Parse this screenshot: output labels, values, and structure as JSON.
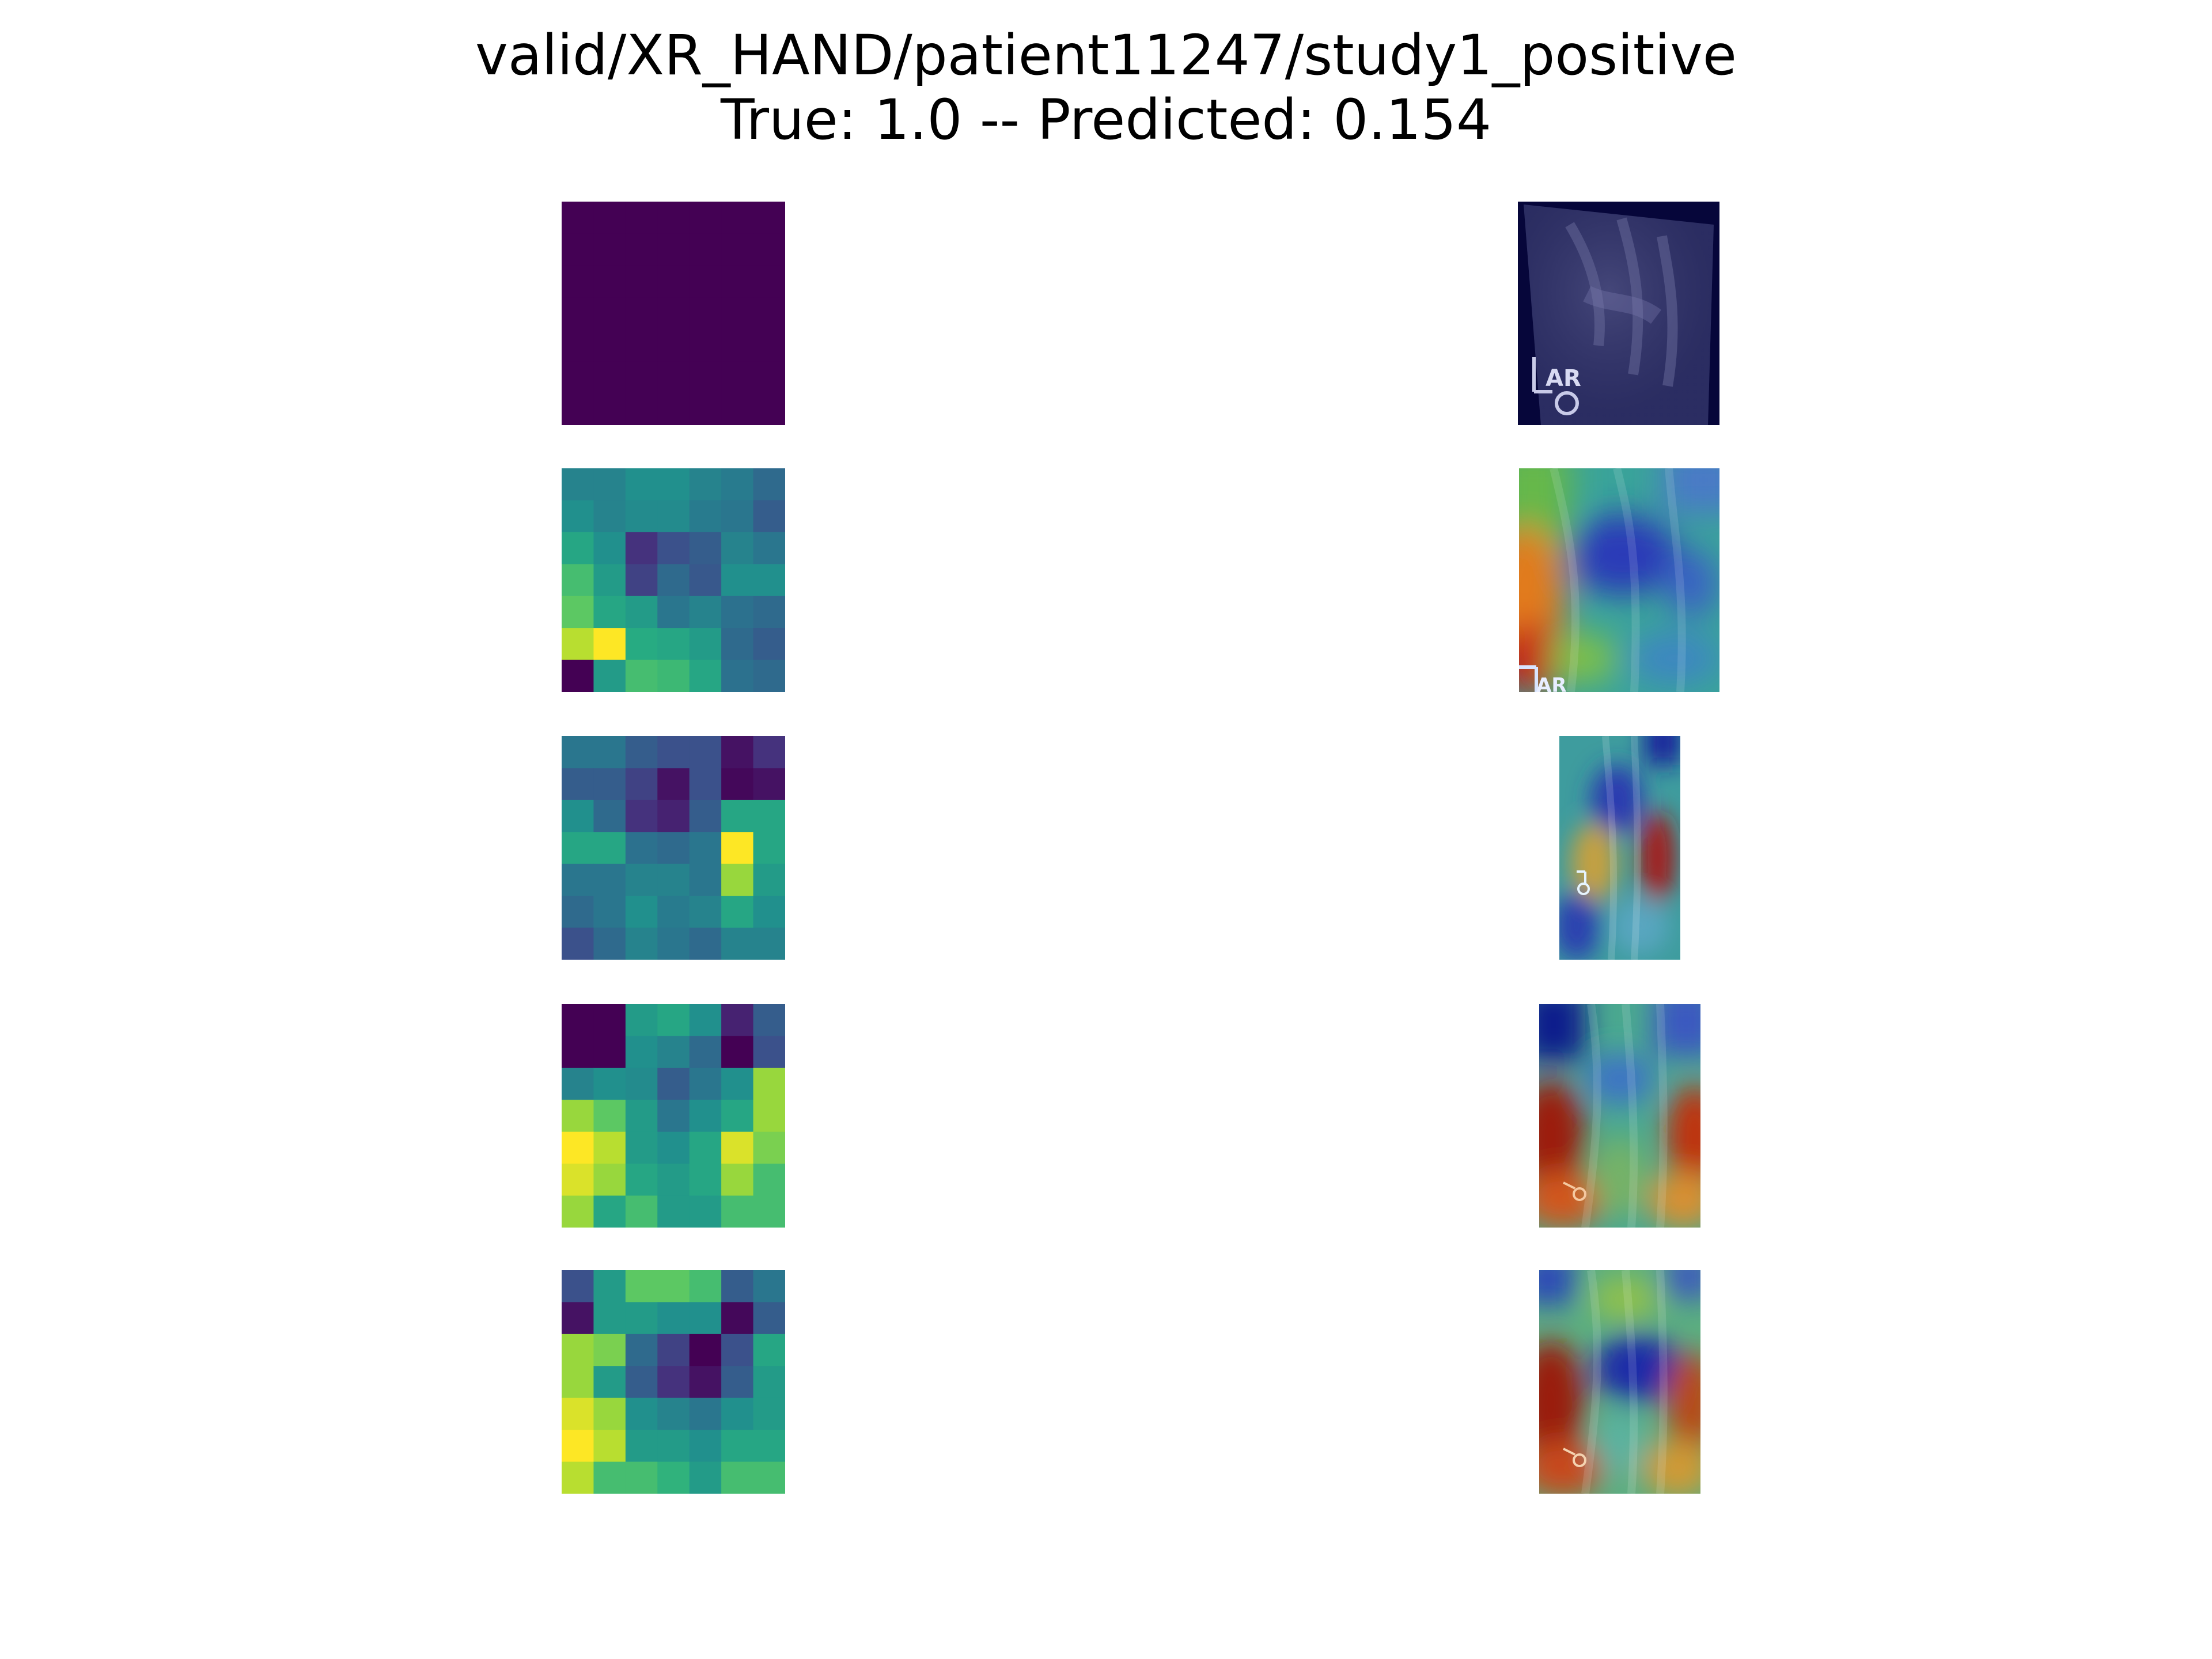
{
  "figure": {
    "title_line1": "valid/XR_HAND/patient11247/study1_positive",
    "title_line2": "True: 1.0 -- Predicted: 0.154"
  },
  "colormaps": {
    "heatmap": "viridis",
    "overlay": "jet"
  },
  "heatmaps": [
    {
      "name": "heatmap-1",
      "grid": [
        [
          0,
          0,
          0,
          0,
          0,
          0,
          0
        ],
        [
          0,
          0,
          0,
          0,
          0,
          0,
          0
        ],
        [
          0,
          0,
          0,
          0,
          0,
          0,
          0
        ],
        [
          0,
          0,
          0,
          0,
          0,
          0,
          0
        ],
        [
          0,
          0,
          0,
          0,
          0,
          0,
          0
        ],
        [
          0,
          0,
          0,
          0,
          0,
          0,
          0
        ],
        [
          0,
          0,
          0,
          0,
          0,
          0,
          0
        ]
      ]
    },
    {
      "name": "heatmap-2",
      "grid": [
        [
          0.45,
          0.45,
          0.5,
          0.5,
          0.45,
          0.42,
          0.35
        ],
        [
          0.5,
          0.45,
          0.48,
          0.48,
          0.42,
          0.4,
          0.3
        ],
        [
          0.6,
          0.5,
          0.15,
          0.25,
          0.3,
          0.45,
          0.4
        ],
        [
          0.7,
          0.55,
          0.2,
          0.35,
          0.28,
          0.5,
          0.5
        ],
        [
          0.75,
          0.6,
          0.55,
          0.4,
          0.45,
          0.38,
          0.35
        ],
        [
          0.9,
          1.0,
          0.62,
          0.6,
          0.55,
          0.35,
          0.3
        ],
        [
          0.0,
          0.55,
          0.7,
          0.68,
          0.6,
          0.38,
          0.35
        ]
      ]
    },
    {
      "name": "heatmap-3",
      "grid": [
        [
          0.4,
          0.4,
          0.3,
          0.25,
          0.25,
          0.05,
          0.15
        ],
        [
          0.3,
          0.3,
          0.2,
          0.05,
          0.25,
          0.02,
          0.05
        ],
        [
          0.5,
          0.35,
          0.15,
          0.1,
          0.3,
          0.6,
          0.6
        ],
        [
          0.6,
          0.6,
          0.38,
          0.35,
          0.4,
          1.0,
          0.6
        ],
        [
          0.4,
          0.4,
          0.45,
          0.45,
          0.4,
          0.85,
          0.55
        ],
        [
          0.35,
          0.4,
          0.5,
          0.42,
          0.45,
          0.6,
          0.5
        ],
        [
          0.25,
          0.35,
          0.45,
          0.4,
          0.35,
          0.45,
          0.45
        ]
      ]
    },
    {
      "name": "heatmap-4",
      "grid": [
        [
          0.0,
          0.0,
          0.55,
          0.6,
          0.5,
          0.1,
          0.3
        ],
        [
          0.0,
          0.0,
          0.5,
          0.45,
          0.35,
          0.0,
          0.25
        ],
        [
          0.45,
          0.5,
          0.48,
          0.3,
          0.4,
          0.5,
          0.85
        ],
        [
          0.85,
          0.75,
          0.55,
          0.4,
          0.5,
          0.6,
          0.85
        ],
        [
          1.0,
          0.9,
          0.55,
          0.5,
          0.6,
          0.95,
          0.8
        ],
        [
          0.95,
          0.85,
          0.6,
          0.55,
          0.6,
          0.85,
          0.7
        ],
        [
          0.85,
          0.6,
          0.7,
          0.55,
          0.55,
          0.7,
          0.7
        ]
      ]
    },
    {
      "name": "heatmap-5",
      "grid": [
        [
          0.25,
          0.55,
          0.75,
          0.75,
          0.7,
          0.3,
          0.4
        ],
        [
          0.05,
          0.55,
          0.55,
          0.5,
          0.5,
          0.02,
          0.3
        ],
        [
          0.85,
          0.8,
          0.35,
          0.2,
          0.0,
          0.25,
          0.6
        ],
        [
          0.85,
          0.55,
          0.3,
          0.15,
          0.05,
          0.3,
          0.55
        ],
        [
          0.95,
          0.85,
          0.5,
          0.45,
          0.4,
          0.5,
          0.55
        ],
        [
          1.0,
          0.9,
          0.55,
          0.55,
          0.5,
          0.6,
          0.6
        ],
        [
          0.9,
          0.7,
          0.7,
          0.65,
          0.55,
          0.7,
          0.7
        ]
      ]
    }
  ],
  "overlays": [
    {
      "name": "xray-original",
      "kind": "xray"
    },
    {
      "name": "cam-overlay-2",
      "kind": "cam"
    },
    {
      "name": "cam-overlay-3",
      "kind": "cam"
    },
    {
      "name": "cam-overlay-4",
      "kind": "cam"
    },
    {
      "name": "cam-overlay-5",
      "kind": "cam"
    }
  ]
}
